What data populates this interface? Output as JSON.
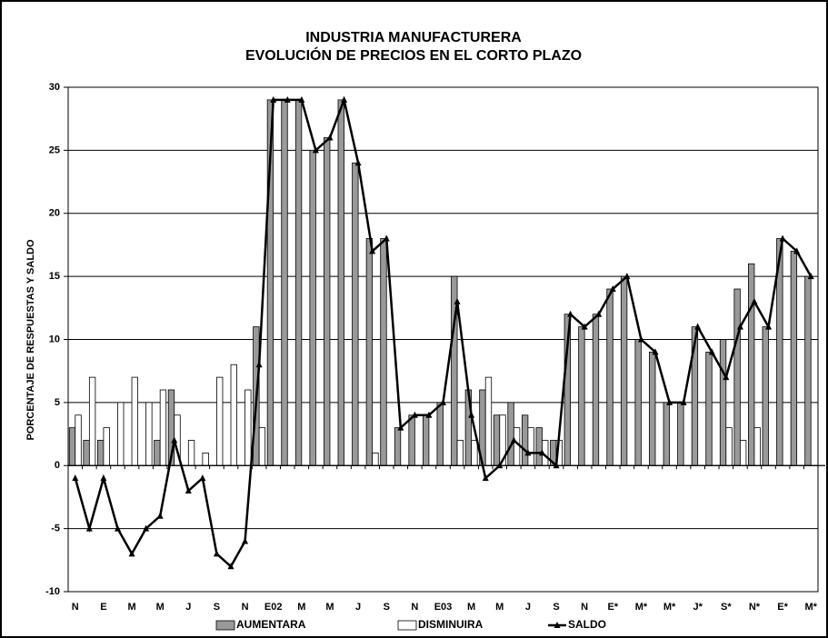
{
  "chart_data": {
    "type": "bar",
    "title": "INDUSTRIA MANUFACTURERA",
    "subtitle": "EVOLUCIÓN DE PRECIOS EN EL CORTO PLAZO",
    "y_label": "PORCENTAJE DE RESPUESTAS Y SALDO",
    "categories": [
      "N",
      null,
      "E",
      null,
      "M",
      null,
      "M",
      null,
      "J",
      null,
      "S",
      null,
      "N",
      null,
      "E02",
      null,
      "M",
      null,
      "M",
      null,
      "J",
      null,
      "S",
      null,
      "N",
      null,
      "E03",
      null,
      "M",
      null,
      "M",
      null,
      "J",
      null,
      "S",
      null,
      "N",
      null,
      "E*",
      null,
      "M*",
      null,
      "M*",
      null,
      "J*",
      null,
      "S*",
      null,
      "N*",
      null,
      "E*",
      null,
      "M*"
    ],
    "series": [
      {
        "name": "AUMENTARA",
        "color": "#999999",
        "values": [
          3,
          2,
          2,
          0,
          0,
          0,
          2,
          6,
          0,
          0,
          0,
          0,
          0,
          11,
          29,
          29,
          29,
          25,
          26,
          29,
          24,
          18,
          18,
          3,
          4,
          4,
          5,
          15,
          6,
          6,
          4,
          5,
          4,
          3,
          2,
          12,
          11,
          12,
          14,
          15,
          10,
          9,
          5,
          5,
          11,
          9,
          10,
          14,
          16,
          11,
          18,
          17,
          15
        ]
      },
      {
        "name": "DISMINUIRA",
        "color": "#ffffff",
        "values": [
          4,
          7,
          3,
          5,
          7,
          5,
          6,
          4,
          2,
          1,
          7,
          8,
          6,
          3,
          0,
          0,
          0,
          0,
          0,
          0,
          0,
          1,
          0,
          0,
          0,
          0,
          0,
          2,
          2,
          7,
          4,
          3,
          3,
          2,
          2,
          0,
          0,
          0,
          0,
          0,
          0,
          0,
          0,
          0,
          0,
          0,
          3,
          2,
          3,
          0,
          0,
          0,
          0
        ]
      },
      {
        "name": "SALDO",
        "type": "line",
        "color": "#000000",
        "values": [
          -1,
          -5,
          -1,
          -5,
          -7,
          -5,
          -4,
          2,
          -2,
          -1,
          -7,
          -8,
          -6,
          8,
          29,
          29,
          29,
          25,
          26,
          29,
          24,
          17,
          18,
          3,
          4,
          4,
          5,
          13,
          4,
          -1,
          0,
          2,
          1,
          1,
          0,
          12,
          11,
          12,
          14,
          15,
          10,
          9,
          5,
          5,
          11,
          9,
          7,
          11,
          13,
          11,
          18,
          17,
          15
        ]
      }
    ],
    "ylim": [
      -10,
      30
    ],
    "yticks": [
      -10,
      -5,
      0,
      5,
      10,
      15,
      20,
      25,
      30
    ],
    "grid": true
  }
}
